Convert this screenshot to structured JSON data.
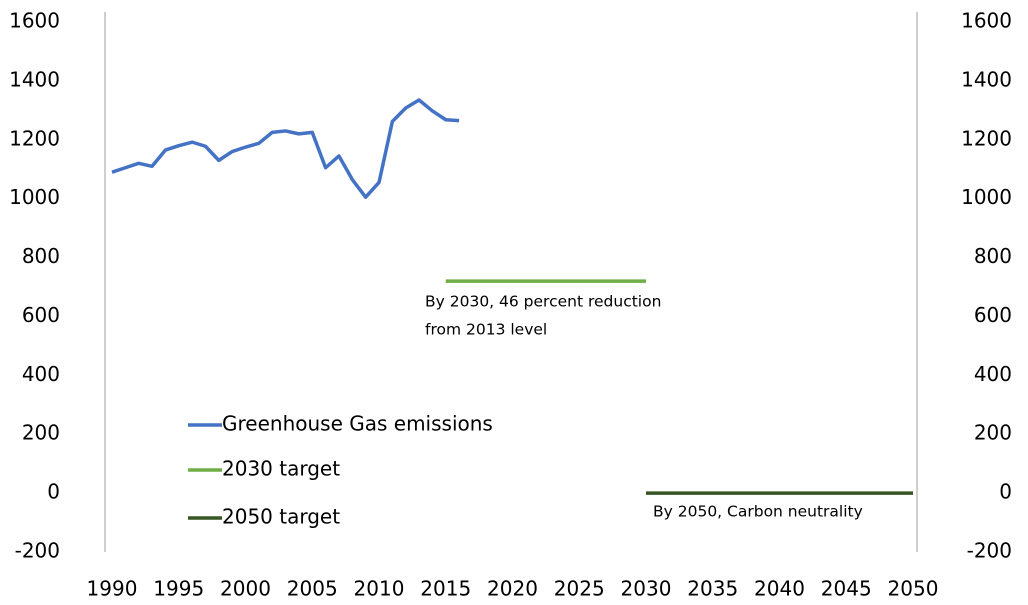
{
  "chart_data": {
    "type": "line",
    "xlim": [
      1990,
      2050
    ],
    "xticks": [
      1990,
      1995,
      2000,
      2005,
      2010,
      2015,
      2020,
      2025,
      2030,
      2035,
      2040,
      2045,
      2050
    ],
    "ylim": [
      -200,
      1600
    ],
    "yticks": [
      -200,
      0,
      200,
      400,
      600,
      800,
      1000,
      1200,
      1400,
      1600
    ],
    "y2lim": [
      -200,
      1600
    ],
    "y2ticks": [
      -200,
      0,
      200,
      400,
      600,
      800,
      1000,
      1200,
      1400,
      1600
    ],
    "series": [
      {
        "name": "Greenhouse Gas emissions",
        "color": "#4472c4",
        "x": [
          1990,
          1991,
          1992,
          1993,
          1994,
          1995,
          1996,
          1997,
          1998,
          1999,
          2000,
          2001,
          2002,
          2003,
          2004,
          2005,
          2006,
          2007,
          2008,
          2009,
          2010,
          2011,
          2012,
          2013,
          2014,
          2015,
          2016
        ],
        "values": [
          1090,
          1105,
          1120,
          1110,
          1165,
          1180,
          1192,
          1178,
          1130,
          1160,
          1175,
          1188,
          1225,
          1230,
          1220,
          1225,
          1105,
          1145,
          1065,
          1005,
          1055,
          1262,
          1308,
          1335,
          1298,
          1268,
          1265
        ]
      },
      {
        "name": "2030 target",
        "color": "#70ad47",
        "x": [
          2015,
          2030
        ],
        "values": [
          720,
          720
        ]
      },
      {
        "name": "2050 target",
        "color": "#375623",
        "x": [
          2030,
          2050
        ],
        "values": [
          0,
          0
        ]
      }
    ],
    "annotations": [
      {
        "lines": [
          "By 2030, 46 percent reduction",
          "from 2013 level"
        ]
      },
      {
        "lines": [
          "By 2050, Carbon neutrality"
        ]
      }
    ],
    "legend": "lower left"
  }
}
